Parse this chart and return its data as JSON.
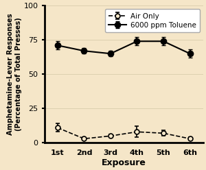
{
  "x_labels": [
    "1st",
    "2nd",
    "3rd",
    "4th",
    "5th",
    "6th"
  ],
  "x_values": [
    1,
    2,
    3,
    4,
    5,
    6
  ],
  "toluene_y": [
    71,
    67,
    65,
    74,
    74,
    65
  ],
  "toluene_err": [
    3,
    2,
    2,
    3,
    3,
    3
  ],
  "air_y": [
    11,
    3,
    5,
    8,
    7,
    3
  ],
  "air_err": [
    3,
    1,
    1,
    4,
    2,
    1
  ],
  "bg_color": "#f5e6c8",
  "line_color": "#000000",
  "ylabel": "Amphetamine-Lever Responses\n(Percentage of Total Presses)",
  "xlabel": "Exposure",
  "ylim": [
    0,
    100
  ],
  "yticks": [
    0,
    25,
    50,
    75,
    100
  ],
  "legend_labels": [
    "Air Only",
    "6000 ppm Toluene"
  ],
  "legend_bg": "#ffffff"
}
